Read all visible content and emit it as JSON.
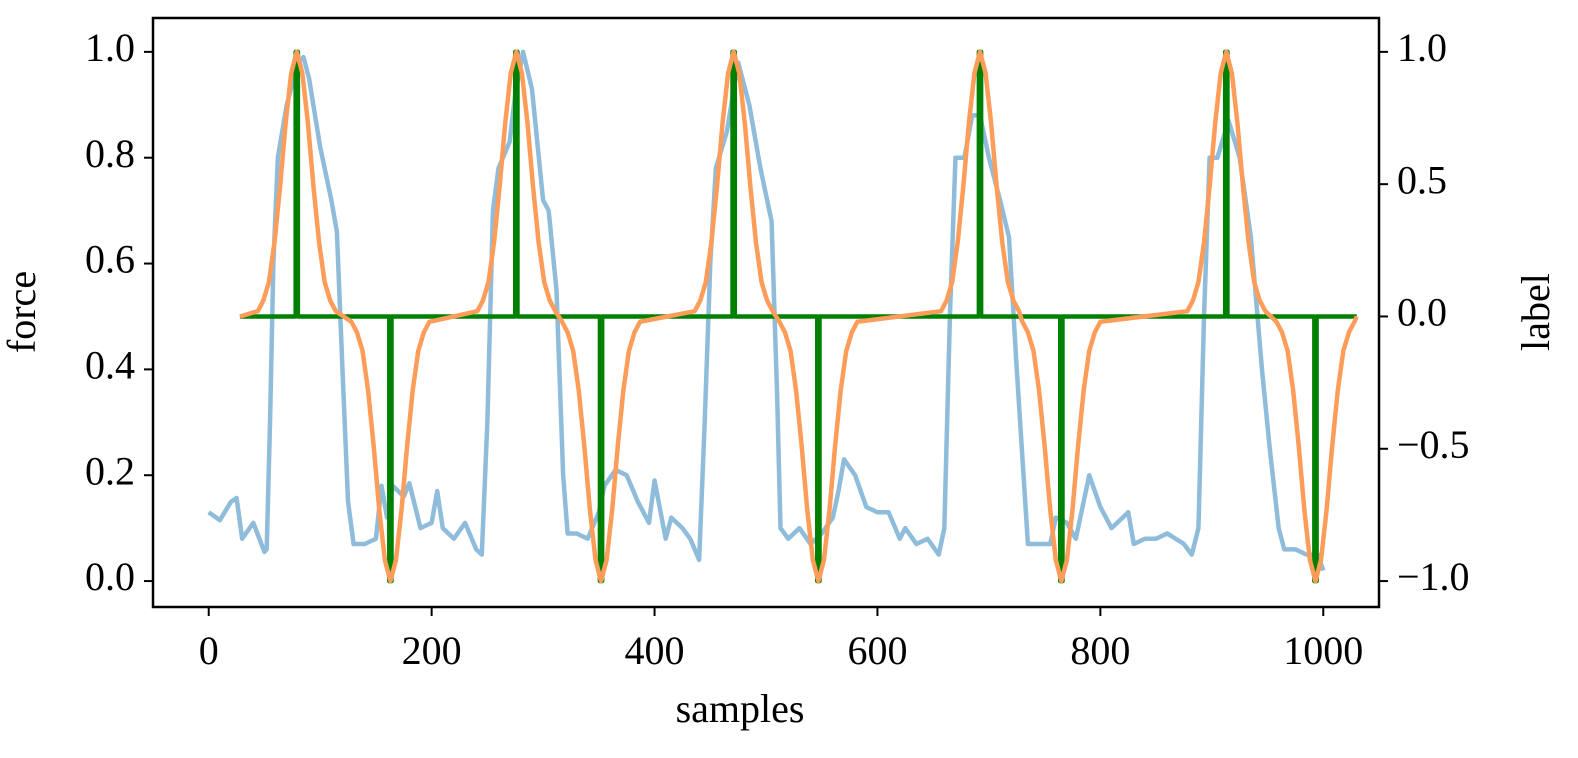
{
  "chart_data": {
    "type": "line",
    "xlabel": "samples",
    "ylabel": "force",
    "y2label": "label",
    "xlim": [
      -50,
      1050
    ],
    "ylim": [
      -0.049,
      1.064
    ],
    "y2lim": [
      -1.098,
      1.128
    ],
    "xticks": [
      0,
      200,
      400,
      600,
      800,
      1000
    ],
    "yticks": [
      {
        "value": 0,
        "label": "0.0"
      },
      0.2,
      0.4,
      0.6,
      0.8,
      {
        "value": 1,
        "label": "1.0"
      }
    ],
    "y2ticks": [
      {
        "value": -1,
        "label": "−1.0"
      },
      {
        "value": -0.5,
        "label": "−0.5"
      },
      {
        "value": 0,
        "label": "0.0"
      },
      {
        "value": 0.5,
        "label": "0.5"
      },
      {
        "value": 1,
        "label": "1.0"
      }
    ],
    "series": [
      {
        "color": "#8fbcdb",
        "axis": "y",
        "x": [
          0,
          10,
          20,
          25,
          30,
          40,
          50,
          52,
          55,
          58,
          62,
          70,
          80,
          85,
          90,
          100,
          110,
          115,
          120,
          125,
          130,
          140,
          150,
          155,
          160,
          165,
          175,
          180,
          190,
          200,
          205,
          210,
          220,
          230,
          240,
          245,
          250,
          255,
          260,
          270,
          275,
          282,
          290,
          300,
          305,
          312,
          318,
          322,
          330,
          340,
          350,
          355,
          365,
          375,
          385,
          395,
          400,
          410,
          415,
          425,
          432,
          440,
          445,
          450,
          455,
          465,
          475,
          485,
          495,
          505,
          510,
          513,
          520,
          530,
          540,
          550,
          560,
          565,
          570,
          580,
          590,
          600,
          610,
          620,
          625,
          635,
          645,
          655,
          660,
          665,
          670,
          678,
          685,
          692,
          700,
          710,
          718,
          725,
          735,
          745,
          755,
          760,
          770,
          778,
          790,
          800,
          810,
          820,
          825,
          830,
          840,
          850,
          860,
          875,
          882,
          888,
          893,
          898,
          905,
          915,
          925,
          935,
          945,
          952,
          960,
          965,
          975,
          985,
          995,
          1000
        ],
        "values": [
          0.13,
          0.115,
          0.15,
          0.157,
          0.08,
          0.11,
          0.055,
          0.06,
          0.3,
          0.6,
          0.8,
          0.9,
          0.98,
          0.99,
          0.95,
          0.82,
          0.72,
          0.66,
          0.4,
          0.15,
          0.07,
          0.07,
          0.08,
          0.18,
          0.12,
          0.18,
          0.16,
          0.185,
          0.1,
          0.11,
          0.17,
          0.1,
          0.08,
          0.11,
          0.06,
          0.05,
          0.3,
          0.7,
          0.78,
          0.83,
          0.92,
          1.0,
          0.93,
          0.72,
          0.7,
          0.55,
          0.2,
          0.09,
          0.09,
          0.08,
          0.13,
          0.18,
          0.21,
          0.2,
          0.15,
          0.11,
          0.19,
          0.08,
          0.12,
          0.1,
          0.08,
          0.04,
          0.3,
          0.6,
          0.78,
          0.85,
          0.98,
          0.9,
          0.78,
          0.68,
          0.35,
          0.1,
          0.08,
          0.1,
          0.07,
          0.09,
          0.12,
          0.17,
          0.23,
          0.2,
          0.14,
          0.13,
          0.13,
          0.08,
          0.1,
          0.07,
          0.08,
          0.05,
          0.1,
          0.5,
          0.8,
          0.8,
          0.88,
          0.88,
          0.8,
          0.72,
          0.65,
          0.4,
          0.07,
          0.07,
          0.07,
          0.12,
          0.11,
          0.08,
          0.2,
          0.14,
          0.1,
          0.12,
          0.13,
          0.07,
          0.08,
          0.08,
          0.09,
          0.07,
          0.05,
          0.1,
          0.5,
          0.8,
          0.8,
          0.87,
          0.8,
          0.65,
          0.4,
          0.25,
          0.1,
          0.06,
          0.06,
          0.05,
          0.05,
          0.02
        ]
      },
      {
        "color": "#008000",
        "axis": "y2",
        "x": [
          28,
          78,
          78,
          80,
          80,
          162,
          162,
          164,
          164,
          275,
          275,
          277,
          277,
          351,
          351,
          353,
          353,
          470,
          470,
          472,
          472,
          546,
          546,
          548,
          548,
          691,
          691,
          693,
          693,
          764,
          764,
          766,
          766,
          912,
          912,
          914,
          914,
          992,
          992,
          994,
          994,
          1030
        ],
        "values": [
          0,
          0,
          1,
          1,
          0,
          0,
          -1,
          -1,
          0,
          0,
          1,
          1,
          0,
          0,
          -1,
          -1,
          0,
          0,
          1,
          1,
          0,
          0,
          -1,
          -1,
          0,
          0,
          1,
          1,
          0,
          0,
          -1,
          -1,
          0,
          0,
          1,
          1,
          0,
          0,
          -1,
          -1,
          0,
          0
        ]
      },
      {
        "color": "#fe9d5a",
        "axis": "y2",
        "x": [
          28,
          44,
          49,
          54,
          59,
          64,
          69,
          74,
          79,
          84,
          89,
          94,
          99,
          104,
          109,
          114,
          128,
          133,
          138,
          143,
          148,
          153,
          158,
          163,
          168,
          173,
          178,
          183,
          188,
          193,
          198,
          241,
          246,
          251,
          256,
          261,
          266,
          271,
          276,
          281,
          286,
          291,
          296,
          301,
          306,
          311,
          317,
          322,
          327,
          332,
          337,
          342,
          347,
          352,
          357,
          362,
          367,
          372,
          377,
          382,
          387,
          436,
          441,
          446,
          451,
          456,
          461,
          466,
          471,
          476,
          481,
          486,
          491,
          496,
          501,
          506,
          512,
          517,
          522,
          527,
          532,
          537,
          542,
          547,
          552,
          557,
          562,
          567,
          572,
          577,
          582,
          657,
          662,
          667,
          672,
          677,
          682,
          687,
          692,
          697,
          702,
          707,
          712,
          717,
          722,
          727,
          730,
          735,
          740,
          745,
          750,
          755,
          760,
          765,
          770,
          775,
          780,
          785,
          790,
          795,
          800,
          878,
          883,
          888,
          893,
          898,
          903,
          908,
          913,
          918,
          923,
          928,
          933,
          938,
          943,
          948,
          958,
          963,
          968,
          973,
          978,
          983,
          988,
          993,
          998,
          1003,
          1008,
          1013,
          1018,
          1023,
          1028,
          1030
        ],
        "values": [
          0,
          0.02,
          0.06,
          0.13,
          0.28,
          0.49,
          0.73,
          0.92,
          1,
          0.92,
          0.73,
          0.49,
          0.28,
          0.13,
          0.06,
          0.02,
          -0.02,
          -0.06,
          -0.13,
          -0.28,
          -0.49,
          -0.73,
          -0.92,
          -1,
          -0.92,
          -0.73,
          -0.49,
          -0.28,
          -0.13,
          -0.06,
          -0.02,
          0.02,
          0.06,
          0.13,
          0.28,
          0.49,
          0.73,
          0.92,
          1,
          0.92,
          0.73,
          0.49,
          0.28,
          0.13,
          0.06,
          0.02,
          -0.02,
          -0.06,
          -0.13,
          -0.28,
          -0.49,
          -0.73,
          -0.92,
          -1,
          -0.92,
          -0.73,
          -0.49,
          -0.28,
          -0.13,
          -0.06,
          -0.02,
          0.02,
          0.06,
          0.13,
          0.28,
          0.49,
          0.73,
          0.92,
          1,
          0.92,
          0.73,
          0.49,
          0.28,
          0.13,
          0.06,
          0.02,
          -0.02,
          -0.06,
          -0.13,
          -0.28,
          -0.49,
          -0.73,
          -0.92,
          -1,
          -0.92,
          -0.73,
          -0.49,
          -0.28,
          -0.13,
          -0.06,
          -0.02,
          0.02,
          0.06,
          0.13,
          0.28,
          0.49,
          0.73,
          0.92,
          1,
          0.92,
          0.73,
          0.49,
          0.28,
          0.13,
          0.06,
          0.02,
          -0.02,
          -0.06,
          -0.13,
          -0.28,
          -0.49,
          -0.73,
          -0.92,
          -1,
          -0.92,
          -0.73,
          -0.49,
          -0.28,
          -0.13,
          -0.06,
          -0.02,
          0.02,
          0.06,
          0.13,
          0.28,
          0.49,
          0.73,
          0.92,
          1,
          0.92,
          0.73,
          0.49,
          0.28,
          0.13,
          0.06,
          0.02,
          -0.02,
          -0.06,
          -0.13,
          -0.28,
          -0.49,
          -0.73,
          -0.92,
          -1,
          -0.92,
          -0.73,
          -0.49,
          -0.28,
          -0.13,
          -0.06,
          -0.02,
          0
        ]
      }
    ]
  }
}
